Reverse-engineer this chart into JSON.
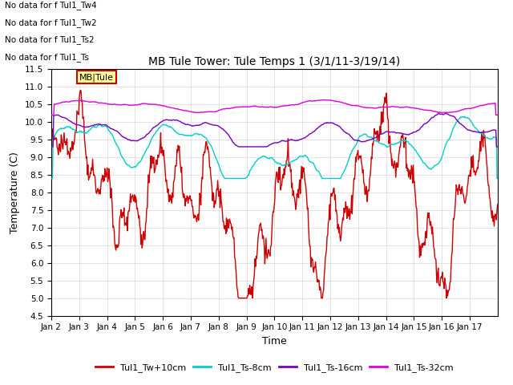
{
  "title": "MB Tule Tower: Tule Temps 1 (3/1/11-3/19/14)",
  "xlabel": "Time",
  "ylabel": "Temperature (C)",
  "ylim": [
    4.5,
    11.5
  ],
  "yticks": [
    4.5,
    5.0,
    5.5,
    6.0,
    6.5,
    7.0,
    7.5,
    8.0,
    8.5,
    9.0,
    9.5,
    10.0,
    10.5,
    11.0,
    11.5
  ],
  "x_labels": [
    "Jan 2",
    "Jan 3",
    "Jan 4",
    "Jan 5",
    "Jan 6",
    "Jan 7",
    "Jan 8",
    "Jan 9",
    "Jan 10",
    "Jan 11",
    "Jan 12",
    "Jan 13",
    "Jan 14",
    "Jan 15",
    "Jan 16",
    "Jan 17"
  ],
  "colors": {
    "Tw10cm": "#cc0000",
    "Ts8cm": "#00cccc",
    "Ts16cm": "#7700bb",
    "Ts32cm": "#dd00dd"
  },
  "legend_labels": [
    "Tul1_Tw+10cm",
    "Tul1_Ts-8cm",
    "Tul1_Ts-16cm",
    "Tul1_Ts-32cm"
  ],
  "no_data_texts": [
    "No data for f Tul1_Tw4",
    "No data for f Tul1_Tw2",
    "No data for f Tul1_Ts2",
    "No data for f Tul1_Ts"
  ],
  "annotation_box_text": "MB|Tule",
  "annotation_box_color": "#ffff99",
  "annotation_box_edge": "#cc0000",
  "grid_color": "#d8d8d8",
  "background_color": "#ffffff",
  "figsize": [
    6.4,
    4.8
  ],
  "dpi": 100
}
